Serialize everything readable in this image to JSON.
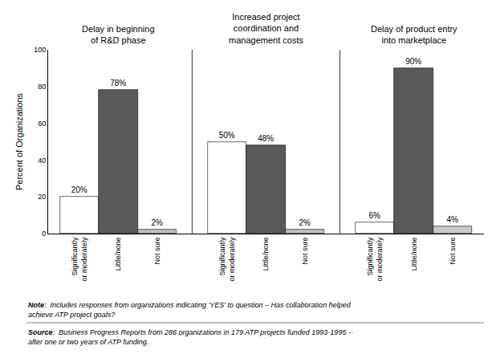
{
  "chart_data": {
    "type": "bar",
    "categories": [
      "Significantly\nor moderately",
      "Little/none",
      "Not sure",
      "Significantly\nor moderately",
      "Little/none",
      "Not sure",
      "Significantly\nor moderately",
      "Little/none",
      "Not sure"
    ],
    "values": [
      20,
      78,
      2,
      50,
      48,
      2,
      6,
      90,
      4
    ],
    "value_labels": [
      "20%",
      "78%",
      "2%",
      "50%",
      "48%",
      "2%",
      "6%",
      "90%",
      "4%"
    ],
    "colors": [
      "#ffffff",
      "#595959",
      "#c0c0c0",
      "#ffffff",
      "#595959",
      "#c0c0c0",
      "#ffffff",
      "#595959",
      "#c8c8c8"
    ],
    "data_labels": true,
    "annotations": [
      "Delay in beginning\nof R&D phase",
      "Increased project\ncoordination and\nmanagement costs",
      "Delay of product entry\ninto marketplace"
    ],
    "notes": [
      "Note:  Includes responses from organizations indicating 'YES' to question – Has collaboration helped achieve ATP project goals?",
      "Source:  Business Progress Reports from 286 organizations in 179 ATP projects funded 1993-1995 -- after one or two years of ATP funding."
    ],
    "ylabel": "Percent of Organizations",
    "ylim": [
      0,
      100
    ],
    "yticks": [
      0,
      20,
      40,
      60,
      80,
      100
    ],
    "grid": false
  }
}
